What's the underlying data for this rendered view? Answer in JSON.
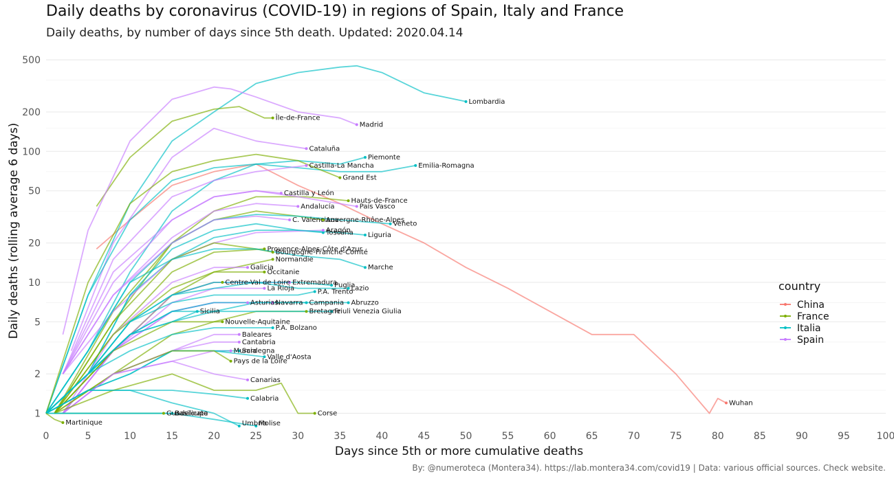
{
  "header": {
    "title": "Daily deaths by coronavirus (COVID-19) in regions of Spain, Italy and France",
    "subtitle": "Daily deaths, by number of days since 5th death. Updated: 2020.04.14"
  },
  "caption": "By: @numeroteca (Montera34). https://lab.montera34.com/covid19 | Data: various official sources. Check website.",
  "colors": {
    "China": "#f8766d",
    "France": "#7cae00",
    "Italia": "#00bfc4",
    "Spain": "#c77cff"
  },
  "chart_data": {
    "type": "line",
    "title": "Daily deaths by coronavirus (COVID-19) in regions of Spain, Italy and France",
    "subtitle": "Daily deaths, by number of days since 5th death. Updated: 2020.04.14",
    "xlabel": "Days since 5th or more cumulative deaths",
    "ylabel": "Daily deaths (rolling average 6 days)",
    "x_scale": "linear",
    "y_scale": "log",
    "xlim": [
      0,
      100
    ],
    "ylim": [
      0.8,
      600
    ],
    "x_ticks": [
      0,
      5,
      10,
      15,
      20,
      25,
      30,
      35,
      40,
      45,
      50,
      55,
      60,
      65,
      70,
      75,
      80,
      85,
      90,
      95,
      100
    ],
    "y_ticks": [
      1,
      2,
      5,
      10,
      20,
      50,
      100,
      200,
      500
    ],
    "grid": true,
    "legend": {
      "title": "country",
      "position": "right",
      "entries": [
        "China",
        "France",
        "Italia",
        "Spain"
      ]
    },
    "series": [
      {
        "name": "Wuhan",
        "country": "China",
        "x": [
          6,
          10,
          15,
          20,
          25,
          30,
          35,
          40,
          45,
          50,
          55,
          60,
          65,
          70,
          75,
          79,
          80,
          81
        ],
        "y": [
          18,
          30,
          55,
          70,
          80,
          55,
          40,
          28,
          20,
          13,
          9,
          6,
          4,
          4,
          2,
          1,
          1.3,
          1.2
        ]
      },
      {
        "name": "Lombardia",
        "country": "Italia",
        "x": [
          0,
          5,
          10,
          15,
          20,
          25,
          30,
          35,
          37,
          40,
          45,
          50
        ],
        "y": [
          1,
          8,
          40,
          120,
          200,
          330,
          400,
          440,
          450,
          400,
          280,
          240
        ]
      },
      {
        "name": "Île-de-France",
        "country": "France",
        "x": [
          6,
          10,
          15,
          20,
          23,
          26,
          27
        ],
        "y": [
          38,
          90,
          170,
          210,
          220,
          180,
          180
        ]
      },
      {
        "name": "Madrid",
        "country": "Spain",
        "x": [
          2,
          5,
          10,
          15,
          20,
          22,
          25,
          30,
          35,
          37
        ],
        "y": [
          4,
          25,
          120,
          250,
          310,
          300,
          260,
          200,
          180,
          160
        ]
      },
      {
        "name": "Cataluña",
        "country": "Spain",
        "x": [
          3,
          8,
          15,
          20,
          25,
          31
        ],
        "y": [
          3,
          20,
          90,
          150,
          120,
          105
        ]
      },
      {
        "name": "Piemonte",
        "country": "Italia",
        "x": [
          0,
          5,
          10,
          15,
          20,
          25,
          30,
          35,
          38
        ],
        "y": [
          1,
          3,
          12,
          35,
          60,
          80,
          85,
          80,
          90
        ]
      },
      {
        "name": "Emilia-Romagna",
        "country": "Italia",
        "x": [
          0,
          5,
          10,
          15,
          20,
          25,
          30,
          35,
          40,
          44
        ],
        "y": [
          1,
          8,
          30,
          60,
          75,
          80,
          75,
          70,
          70,
          78
        ]
      },
      {
        "name": "Castilla-La Mancha",
        "country": "Spain",
        "x": [
          2,
          8,
          15,
          20,
          25,
          31
        ],
        "y": [
          2,
          15,
          45,
          60,
          70,
          78
        ]
      },
      {
        "name": "Grand Est",
        "country": "France",
        "x": [
          0,
          5,
          10,
          15,
          20,
          25,
          30,
          35
        ],
        "y": [
          1,
          10,
          40,
          70,
          85,
          95,
          85,
          63
        ]
      },
      {
        "name": "Castilla y León",
        "country": "Spain",
        "x": [
          2,
          8,
          15,
          20,
          25,
          28
        ],
        "y": [
          2,
          10,
          30,
          45,
          50,
          48
        ]
      },
      {
        "name": "Hauts-de-France",
        "country": "France",
        "x": [
          1,
          8,
          15,
          20,
          25,
          31,
          36
        ],
        "y": [
          1,
          6,
          20,
          35,
          45,
          45,
          42
        ]
      },
      {
        "name": "País Vasco",
        "country": "Spain",
        "x": [
          2,
          8,
          15,
          20,
          25,
          30,
          37
        ],
        "y": [
          2,
          12,
          30,
          45,
          50,
          45,
          38
        ]
      },
      {
        "name": "Andalucía",
        "country": "Spain",
        "x": [
          2,
          8,
          15,
          20,
          25,
          30
        ],
        "y": [
          2,
          8,
          22,
          35,
          40,
          38
        ]
      },
      {
        "name": "Auvergne-Rhône-Alpes",
        "country": "France",
        "x": [
          1,
          8,
          15,
          20,
          25,
          30,
          33
        ],
        "y": [
          1,
          5,
          20,
          30,
          35,
          32,
          30
        ]
      },
      {
        "name": "Veneto",
        "country": "Italia",
        "x": [
          0,
          5,
          10,
          15,
          20,
          25,
          30,
          35,
          41
        ],
        "y": [
          1,
          3,
          10,
          20,
          30,
          33,
          32,
          30,
          28
        ]
      },
      {
        "name": "C. Valenciana",
        "country": "Spain",
        "x": [
          2,
          8,
          15,
          20,
          25,
          29
        ],
        "y": [
          2,
          8,
          20,
          30,
          32,
          30
        ]
      },
      {
        "name": "Toscana",
        "country": "Italia",
        "x": [
          0,
          5,
          10,
          15,
          20,
          25,
          30,
          33
        ],
        "y": [
          1,
          2,
          8,
          15,
          22,
          25,
          25,
          24
        ]
      },
      {
        "name": "Aragón",
        "country": "Spain",
        "x": [
          2,
          8,
          15,
          20,
          25,
          33
        ],
        "y": [
          2,
          6,
          15,
          20,
          24,
          25
        ]
      },
      {
        "name": "Liguria",
        "country": "Italia",
        "x": [
          0,
          5,
          10,
          15,
          20,
          25,
          30,
          35,
          38
        ],
        "y": [
          1,
          2,
          8,
          18,
          25,
          28,
          25,
          24,
          23
        ]
      },
      {
        "name": "Bourgogne-Franche-Comté",
        "country": "France",
        "x": [
          1,
          8,
          15,
          20,
          25,
          27
        ],
        "y": [
          1,
          5,
          15,
          20,
          18,
          17
        ]
      },
      {
        "name": "Provence-Alpes-Côte d'Azur",
        "country": "France",
        "x": [
          1,
          8,
          15,
          20,
          26
        ],
        "y": [
          1,
          4,
          12,
          17,
          18
        ]
      },
      {
        "name": "Normandie",
        "country": "France",
        "x": [
          1,
          8,
          15,
          20,
          27
        ],
        "y": [
          1,
          3,
          8,
          12,
          15
        ]
      },
      {
        "name": "Galicia",
        "country": "Spain",
        "x": [
          2,
          8,
          15,
          20,
          24
        ],
        "y": [
          1,
          4,
          10,
          13,
          13
        ]
      },
      {
        "name": "Occitanie",
        "country": "France",
        "x": [
          1,
          8,
          15,
          20,
          26
        ],
        "y": [
          1,
          4,
          9,
          12,
          12
        ]
      },
      {
        "name": "Marche",
        "country": "Italia",
        "x": [
          0,
          5,
          10,
          15,
          20,
          25,
          30,
          35,
          38
        ],
        "y": [
          1,
          3,
          10,
          15,
          18,
          18,
          16,
          15,
          13
        ]
      },
      {
        "name": "Centre-Val de Loire",
        "country": "France",
        "x": [
          1,
          8,
          15,
          20,
          21
        ],
        "y": [
          1,
          3,
          8,
          10,
          10
        ]
      },
      {
        "name": "Extremadura",
        "country": "Spain",
        "x": [
          2,
          8,
          15,
          20,
          25,
          29
        ],
        "y": [
          1,
          3,
          8,
          10,
          10,
          10
        ]
      },
      {
        "name": "Puglia",
        "country": "Italia",
        "x": [
          0,
          5,
          10,
          15,
          20,
          25,
          30,
          34
        ],
        "y": [
          1,
          2,
          5,
          8,
          10,
          10,
          10,
          9.5
        ]
      },
      {
        "name": "La Rioja",
        "country": "Spain",
        "x": [
          2,
          8,
          15,
          20,
          25,
          26
        ],
        "y": [
          1,
          3,
          7,
          9,
          9,
          9
        ]
      },
      {
        "name": "Lazio",
        "country": "Italia",
        "x": [
          0,
          5,
          10,
          15,
          20,
          25,
          30,
          36
        ],
        "y": [
          1,
          2,
          5,
          8,
          9,
          10,
          9,
          9
        ]
      },
      {
        "name": "P.A. Trento",
        "country": "Italia",
        "x": [
          0,
          5,
          10,
          15,
          20,
          25,
          30,
          32
        ],
        "y": [
          1,
          2,
          5,
          7,
          8,
          8,
          8,
          8.5
        ]
      },
      {
        "name": "Asturias",
        "country": "Spain",
        "x": [
          2,
          8,
          15,
          20,
          24
        ],
        "y": [
          1,
          3,
          6,
          7,
          7
        ]
      },
      {
        "name": "Navarra",
        "country": "Spain",
        "x": [
          2,
          8,
          15,
          20,
          25,
          27
        ],
        "y": [
          1,
          3,
          6,
          7,
          7,
          7
        ]
      },
      {
        "name": "Abruzzo",
        "country": "Italia",
        "x": [
          0,
          5,
          10,
          15,
          20,
          25,
          30,
          36
        ],
        "y": [
          1,
          2,
          4,
          6,
          7,
          7,
          7,
          7
        ]
      },
      {
        "name": "Campania",
        "country": "Italia",
        "x": [
          0,
          5,
          10,
          15,
          20,
          25,
          30,
          31
        ],
        "y": [
          1,
          2,
          4,
          6,
          6,
          7,
          7,
          7
        ]
      },
      {
        "name": "Sicilia",
        "country": "Italia",
        "x": [
          0,
          5,
          10,
          15,
          18
        ],
        "y": [
          1,
          2,
          4,
          5,
          6
        ]
      },
      {
        "name": "Nouvelle-Aquitaine",
        "country": "France",
        "x": [
          1,
          8,
          15,
          20,
          21
        ],
        "y": [
          1,
          3,
          5,
          5,
          5
        ]
      },
      {
        "name": "Bretagne",
        "country": "France",
        "x": [
          1,
          8,
          15,
          20,
          25,
          30,
          31
        ],
        "y": [
          1,
          2,
          4,
          5,
          6,
          6,
          6
        ]
      },
      {
        "name": "Friuli Venezia Giulia",
        "country": "Italia",
        "x": [
          0,
          5,
          10,
          15,
          20,
          25,
          30,
          34
        ],
        "y": [
          1,
          2,
          4,
          5,
          6,
          6,
          6,
          6
        ]
      },
      {
        "name": "P.A. Bolzano",
        "country": "Italia",
        "x": [
          0,
          5,
          10,
          15,
          20,
          25,
          27
        ],
        "y": [
          1,
          2,
          3,
          4,
          4.5,
          4.5,
          4.5
        ]
      },
      {
        "name": "Baleares",
        "country": "Spain",
        "x": [
          2,
          8,
          15,
          20,
          23
        ],
        "y": [
          1,
          2,
          3,
          4,
          4
        ]
      },
      {
        "name": "Cantabria",
        "country": "Spain",
        "x": [
          2,
          8,
          15,
          20,
          23
        ],
        "y": [
          1,
          2,
          3,
          3.5,
          3.5
        ]
      },
      {
        "name": "Murcia",
        "country": "Spain",
        "x": [
          2,
          8,
          15,
          20,
          22
        ],
        "y": [
          1,
          2,
          2.5,
          3,
          3
        ]
      },
      {
        "name": "Sardegna",
        "country": "Italia",
        "x": [
          0,
          5,
          10,
          15,
          20,
          23
        ],
        "y": [
          1,
          1.5,
          2,
          3,
          3,
          3
        ]
      },
      {
        "name": "Valle d'Aosta",
        "country": "Italia",
        "x": [
          0,
          5,
          10,
          15,
          20,
          26
        ],
        "y": [
          1,
          1.5,
          2,
          3,
          3,
          2.7
        ]
      },
      {
        "name": "Pays de la Loire",
        "country": "France",
        "x": [
          1,
          8,
          15,
          20,
          22
        ],
        "y": [
          1,
          2,
          3,
          3,
          2.5
        ]
      },
      {
        "name": "Canarias",
        "country": "Spain",
        "x": [
          2,
          8,
          15,
          20,
          24
        ],
        "y": [
          1,
          2,
          2.5,
          2,
          1.8
        ]
      },
      {
        "name": "Calabria",
        "country": "Italia",
        "x": [
          0,
          5,
          10,
          15,
          20,
          24
        ],
        "y": [
          1,
          1.5,
          1.5,
          1.5,
          1.4,
          1.3
        ]
      },
      {
        "name": "Guadeloupe",
        "country": "France",
        "x": [
          1,
          8,
          14
        ],
        "y": [
          1,
          1,
          1
        ]
      },
      {
        "name": "Basilicata",
        "country": "Italia",
        "x": [
          0,
          5,
          10,
          15
        ],
        "y": [
          1,
          1,
          1,
          1
        ]
      },
      {
        "name": "Corse",
        "country": "France",
        "x": [
          1,
          8,
          15,
          20,
          25,
          28,
          30,
          32
        ],
        "y": [
          1,
          1.5,
          2,
          1.5,
          1.5,
          1.7,
          1,
          1
        ]
      },
      {
        "name": "Umbria",
        "country": "Italia",
        "x": [
          0,
          5,
          10,
          15,
          20,
          23
        ],
        "y": [
          1,
          1.5,
          1.5,
          1.2,
          1,
          0.8
        ]
      },
      {
        "name": "Molise",
        "country": "Italia",
        "x": [
          0,
          5,
          10,
          15,
          20,
          25
        ],
        "y": [
          1,
          1,
          1,
          1,
          0.9,
          0.8
        ]
      },
      {
        "name": "Martinique",
        "country": "France",
        "x": [
          0,
          1,
          2
        ],
        "y": [
          1,
          0.9,
          0.85
        ]
      }
    ]
  }
}
